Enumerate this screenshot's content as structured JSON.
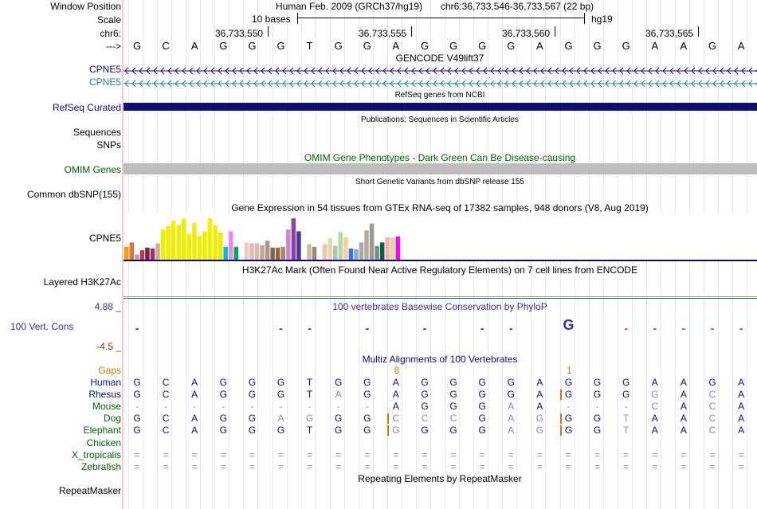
{
  "header": {
    "window_position_label": "Window Position",
    "assembly": "Human Feb. 2009 (GRCh37/hg19)",
    "position": "chr6:36,733,546-36,733,567 (22 bp)",
    "scale_label": "Scale",
    "scale_text": "10 bases",
    "scale_db": "hg19",
    "chrom_label": "chr6:",
    "strand_label": "--->",
    "ticks": [
      "36,733,550",
      "36,733,555",
      "36,733,560",
      "36,733,565"
    ]
  },
  "sequence": [
    "G",
    "C",
    "A",
    "G",
    "G",
    "G",
    "T",
    "G",
    "G",
    "A",
    "G",
    "G",
    "G",
    "G",
    "A",
    "G",
    "G",
    "G",
    "A",
    "A",
    "G",
    "A"
  ],
  "gencode": {
    "title": "GENCODE V49lift37",
    "genes": [
      {
        "label": "CPNE5",
        "color": "#0c0c78"
      },
      {
        "label": "CPNE5",
        "color": "#1a7fa6"
      }
    ]
  },
  "refseq": {
    "title": "RefSeq genes from NCBI",
    "label": "RefSeq Curated",
    "color": "#0c0c78"
  },
  "publications": {
    "title": "Publications: Sequences in Scientific Articles",
    "label": "Sequences"
  },
  "snps": {
    "label": "SNPs"
  },
  "omim": {
    "title": "OMIM Gene Phenotypes - Dark Green Can Be Disease-causing",
    "label": "OMIM Genes",
    "color": "#006400"
  },
  "dbsnp": {
    "title": "Short Genetic Variants from dbSNP release 155",
    "label": "Common dbSNP(155)"
  },
  "gtex": {
    "title": "Gene Expression in 54 tissues from GTEx RNA-seq of 17382 samples, 948 donors (V8, Aug 2019)",
    "label": "CPNE5",
    "bars": [
      {
        "v": 0.3,
        "c": "#ff9900"
      },
      {
        "v": 0.4,
        "c": "#dd7733"
      },
      {
        "v": 0.12,
        "c": "#aaaaaa"
      },
      {
        "v": 0.22,
        "c": "#bb3344"
      },
      {
        "v": 0.28,
        "c": "#772244"
      },
      {
        "v": 0.26,
        "c": "#993366"
      },
      {
        "v": 0.38,
        "c": "#ccaa99"
      },
      {
        "v": 0.7,
        "c": "#eeee00"
      },
      {
        "v": 0.78,
        "c": "#eeee00"
      },
      {
        "v": 0.9,
        "c": "#eeee00"
      },
      {
        "v": 0.8,
        "c": "#eeee00"
      },
      {
        "v": 0.95,
        "c": "#eeee00"
      },
      {
        "v": 0.6,
        "c": "#eeee00"
      },
      {
        "v": 0.85,
        "c": "#eeee00"
      },
      {
        "v": 0.55,
        "c": "#eeee00"
      },
      {
        "v": 0.66,
        "c": "#eeee00"
      },
      {
        "v": 0.96,
        "c": "#eeee00"
      },
      {
        "v": 0.8,
        "c": "#eeee00"
      },
      {
        "v": 0.64,
        "c": "#eeee00"
      },
      {
        "v": 0.3,
        "c": "#00bbee"
      },
      {
        "v": 0.66,
        "c": "#ee88ee"
      },
      {
        "v": 0.3,
        "c": "#00aa55"
      },
      {
        "v": 0.0,
        "c": "#ffffff"
      },
      {
        "v": 0.4,
        "c": "#eeccbb"
      },
      {
        "v": 0.38,
        "c": "#ddbbbb"
      },
      {
        "v": 0.38,
        "c": "#ddbbaa"
      },
      {
        "v": 0.34,
        "c": "#bbaa99"
      },
      {
        "v": 0.44,
        "c": "#aa9988"
      },
      {
        "v": 0.28,
        "c": "#886644"
      },
      {
        "v": 0.28,
        "c": "#996633"
      },
      {
        "v": 0.3,
        "c": "#aa8866"
      },
      {
        "v": 0.7,
        "c": "#cc88cc"
      },
      {
        "v": 0.96,
        "c": "#8844aa"
      },
      {
        "v": 0.66,
        "c": "#553399"
      },
      {
        "v": 0.0,
        "c": "#ffffff"
      },
      {
        "v": 0.36,
        "c": "#ccbbaa"
      },
      {
        "v": 0.3,
        "c": "#998877"
      },
      {
        "v": 0.0,
        "c": "#ffffff"
      },
      {
        "v": 0.36,
        "c": "#ffbbbb"
      },
      {
        "v": 0.5,
        "c": "#ddddaa"
      },
      {
        "v": 0.32,
        "c": "#bbbbbb"
      },
      {
        "v": 0.64,
        "c": "#aaddaa"
      },
      {
        "v": 0.52,
        "c": "#ffcc99"
      },
      {
        "v": 0.26,
        "c": "#3377ee"
      },
      {
        "v": 0.24,
        "c": "#88aacc"
      },
      {
        "v": 0.4,
        "c": "#aaaaaa"
      },
      {
        "v": 0.68,
        "c": "#bbaa99"
      },
      {
        "v": 0.84,
        "c": "#999999"
      },
      {
        "v": 0.32,
        "c": "#888888"
      },
      {
        "v": 0.4,
        "c": "#006644"
      },
      {
        "v": 0.52,
        "c": "#ffaabb"
      },
      {
        "v": 0.52,
        "c": "#dddd88"
      },
      {
        "v": 0.54,
        "c": "#ff00ff"
      },
      {
        "v": 0.0,
        "c": "#ffffff"
      }
    ]
  },
  "h3k27ac": {
    "title": "H3K27Ac Mark (Often Found Near Active Regulatory Elements) on 7 cell lines from ENCODE",
    "label": "Layered H3K27Ac"
  },
  "phylop": {
    "title": "100 vertebrates Basewise Conservation by PhyloP",
    "label": "100 Vert. Cons",
    "max": "4.88 _",
    "min": "-4.5 _",
    "max_color": "#333399",
    "min_color": "#993300",
    "logo": [
      "-",
      "",
      "",
      "",
      "",
      "-",
      "-",
      "",
      "-",
      "",
      "-",
      "",
      "-",
      "-",
      "",
      "G",
      "",
      "-",
      "-",
      "-",
      "-",
      "-"
    ]
  },
  "multiz": {
    "title": "Multiz Alignments of 100 Vertebrates",
    "gaps_label": "Gaps",
    "gap_marks": [
      {
        "col": 9,
        "text": "8"
      },
      {
        "col": 15,
        "text": "1"
      }
    ],
    "species": [
      {
        "name": "Human",
        "color": "#0c0c78",
        "seq": [
          "G",
          "C",
          "A",
          "G",
          "G",
          "G",
          "T",
          "G",
          "G",
          "A",
          "G",
          "G",
          "G",
          "G",
          "A",
          "G",
          "G",
          "G",
          "A",
          "A",
          "G",
          "A"
        ],
        "dim": []
      },
      {
        "name": "Rhesus",
        "color": "#0c0c78",
        "seq": [
          "G",
          "C",
          "A",
          "G",
          "G",
          "G",
          "T",
          "A",
          "G",
          "A",
          "G",
          "G",
          "G",
          "G",
          "A",
          "G",
          "G",
          "G",
          "G",
          "A",
          "C",
          "A"
        ],
        "dim": [
          7,
          18,
          20
        ]
      },
      {
        "name": "Mouse",
        "color": "#006400",
        "seq": [
          "-",
          "-",
          "-",
          "-",
          "-",
          "-",
          "-",
          "-",
          "-",
          "A",
          "G",
          "G",
          "G",
          "A",
          "A",
          "-",
          "-",
          "-",
          "C",
          "A",
          "C",
          "A"
        ],
        "dim": [
          13,
          18,
          20
        ]
      },
      {
        "name": "Dog",
        "color": "#006400",
        "seq": [
          "G",
          "C",
          "A",
          "G",
          "G",
          "A",
          "G",
          "G",
          "G",
          "C",
          "C",
          "C",
          "G",
          "A",
          "G",
          "G",
          "G",
          "T",
          "A",
          "A",
          "C",
          "A"
        ],
        "dim": [
          5,
          6,
          9,
          10,
          11,
          13,
          14,
          17,
          20
        ]
      },
      {
        "name": "Elephant",
        "color": "#006400",
        "seq": [
          "G",
          "C",
          "A",
          "G",
          "G",
          "G",
          "T",
          "G",
          "G",
          "G",
          "G",
          "G",
          "G",
          "A",
          "G",
          "G",
          "G",
          "T",
          "A",
          "A",
          "C",
          "A"
        ],
        "dim": [
          9,
          13,
          14,
          17,
          20
        ]
      },
      {
        "name": "Chicken",
        "color": "#006400",
        "seq": [],
        "dim": []
      },
      {
        "name": "X_tropicalis",
        "color": "#006400",
        "seq": [
          "=",
          "=",
          "=",
          "=",
          "=",
          "=",
          "=",
          "=",
          "=",
          "=",
          "=",
          "=",
          "=",
          "=",
          "=",
          "=",
          "=",
          "=",
          "=",
          "=",
          "=",
          "="
        ],
        "dim": []
      },
      {
        "name": "Zebrafish",
        "color": "#006400",
        "seq": [
          "=",
          "=",
          "=",
          "=",
          "=",
          "=",
          "=",
          "=",
          "=",
          "=",
          "=",
          "=",
          "=",
          "=",
          "=",
          "=",
          "=",
          "=",
          "=",
          "=",
          "=",
          "="
        ],
        "dim": []
      }
    ]
  },
  "repeatmasker": {
    "title": "Repeating Elements by RepeatMasker",
    "label": "RepeatMasker"
  },
  "colors": {
    "navy": "#0c0c78",
    "teal": "#1a7fa6",
    "omim_bar": "#bebebe",
    "gap_orange": "#cc7a00",
    "h3k_line_a": "#9aaa44",
    "h3k_line_b": "#2266aa"
  }
}
